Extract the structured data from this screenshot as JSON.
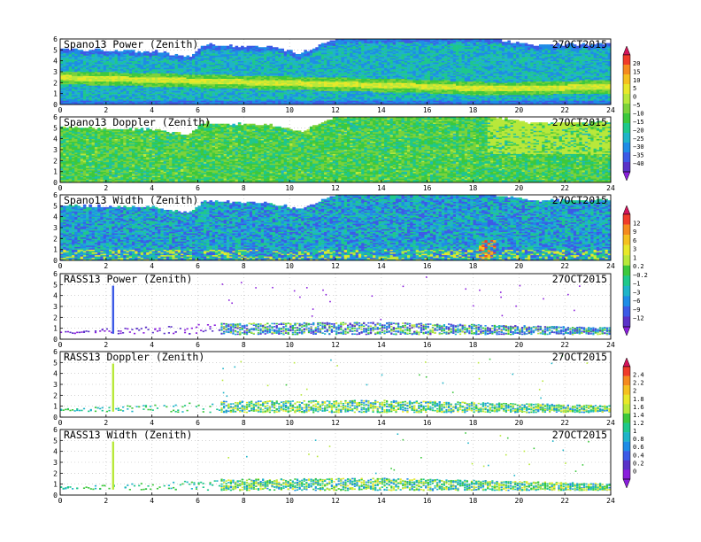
{
  "figure": {
    "colors": {
      "background": "#ffffff",
      "axis": "#000000",
      "grid": "#b8b8b8"
    },
    "colorbars": [
      {
        "id": "cb-power-doppler",
        "applies_to": [
          "Spano13 Power (Zenith)",
          "Spano13 Doppler (Zenith)"
        ],
        "labels": [
          "20",
          "15",
          "10",
          "5",
          "0",
          "−5",
          "−10",
          "−15",
          "−20",
          "−25",
          "−30",
          "−35",
          "−40"
        ],
        "colors": [
          "#d4145a",
          "#f03c2a",
          "#f58a1f",
          "#f5c01f",
          "#e8e82a",
          "#b8e83a",
          "#7ad23a",
          "#3cc83c",
          "#1ec88a",
          "#1eb4c8",
          "#1e8ce6",
          "#3c5ae6",
          "#5a32c8",
          "#8a1edc"
        ]
      },
      {
        "id": "cb-width",
        "applies_to": [
          "Spano13 Width (Zenith)",
          "RASS13 Power (Zenith)"
        ],
        "labels": [
          "12",
          "9",
          "6",
          "3",
          "1",
          "0.2",
          "−0.2",
          "−1",
          "−3",
          "−6",
          "−9",
          "−12"
        ],
        "colors": [
          "#d4145a",
          "#f03c2a",
          "#f58a1f",
          "#f5c01f",
          "#e8e82a",
          "#b8e83a",
          "#3cc83c",
          "#1ec88a",
          "#1eb4c8",
          "#1e8ce6",
          "#3c5ae6",
          "#5a32c8",
          "#8a1edc"
        ]
      },
      {
        "id": "cb-rass",
        "applies_to": [
          "RASS13 Doppler (Zenith)",
          "RASS13 Width (Zenith)"
        ],
        "labels": [
          "2.4",
          "2.2",
          "2",
          "1.8",
          "1.6",
          "1.4",
          "1.2",
          "1",
          "0.8",
          "0.6",
          "0.4",
          "0.2",
          "0"
        ],
        "colors": [
          "#d4145a",
          "#f03c2a",
          "#f58a1f",
          "#f5c01f",
          "#e8e82a",
          "#b8e83a",
          "#3cc83c",
          "#1ec88a",
          "#1eb4c8",
          "#1e8ce6",
          "#3c5ae6",
          "#5a32c8",
          "#8a1edc",
          "#8a1edc"
        ]
      }
    ]
  },
  "chart_data": [
    {
      "type": "heatmap",
      "title": "Spano13 Power (Zenith)",
      "date": "27OCT2015",
      "xlim": [
        0,
        24
      ],
      "ylim": [
        0,
        6
      ],
      "x_ticks": [
        "0",
        "2",
        "4",
        "6",
        "8",
        "10",
        "12",
        "14",
        "16",
        "18",
        "20",
        "22",
        "24"
      ],
      "y_ticks": [
        "0",
        "1",
        "2",
        "3",
        "4",
        "5",
        "6"
      ],
      "colorbar": "cb-power-doppler",
      "top_height": [
        [
          0,
          5.0
        ],
        [
          2,
          4.9
        ],
        [
          4,
          4.8
        ],
        [
          5.6,
          4.3
        ],
        [
          6.2,
          5.4
        ],
        [
          9.2,
          5.2
        ],
        [
          10.4,
          4.6
        ],
        [
          11.0,
          5.1
        ],
        [
          12.0,
          6.0
        ],
        [
          16.5,
          6.0
        ],
        [
          18.2,
          6.0
        ],
        [
          18.7,
          6.0
        ],
        [
          20.5,
          5.4
        ],
        [
          24,
          5.5
        ]
      ],
      "features": [
        {
          "name": "bright layer",
          "points": [
            [
              0,
              2.4
            ],
            [
              4,
              2.2
            ],
            [
              8,
              2.0
            ],
            [
              12,
              1.8
            ],
            [
              16,
              1.6
            ],
            [
              18.5,
              1.4
            ],
            [
              20,
              1.4
            ],
            [
              24,
              1.6
            ]
          ],
          "value": 8
        },
        {
          "name": "surface",
          "points": [
            [
              0,
              0.3
            ],
            [
              24,
              0.3
            ]
          ],
          "value": -30
        }
      ]
    },
    {
      "type": "heatmap",
      "title": "Spano13 Doppler (Zenith)",
      "date": "27OCT2015",
      "xlim": [
        0,
        24
      ],
      "ylim": [
        0,
        6
      ],
      "x_ticks": [
        "0",
        "2",
        "4",
        "6",
        "8",
        "10",
        "12",
        "14",
        "16",
        "18",
        "20",
        "22",
        "24"
      ],
      "y_ticks": [
        "0",
        "1",
        "2",
        "3",
        "4",
        "5",
        "6"
      ],
      "colorbar": "cb-power-doppler",
      "top_height": [
        [
          0,
          5.0
        ],
        [
          2,
          4.9
        ],
        [
          4,
          4.8
        ],
        [
          5.6,
          4.3
        ],
        [
          6.2,
          5.4
        ],
        [
          9.2,
          5.2
        ],
        [
          10.4,
          4.6
        ],
        [
          11.0,
          5.1
        ],
        [
          12.0,
          6.0
        ],
        [
          16.5,
          6.0
        ],
        [
          18.2,
          6.0
        ],
        [
          18.7,
          6.0
        ],
        [
          20.5,
          5.4
        ],
        [
          24,
          5.5
        ]
      ],
      "features": []
    },
    {
      "type": "heatmap",
      "title": "Spano13 Width (Zenith)",
      "date": "27OCT2015",
      "xlim": [
        0,
        24
      ],
      "ylim": [
        0,
        6
      ],
      "x_ticks": [
        "0",
        "2",
        "4",
        "6",
        "8",
        "10",
        "12",
        "14",
        "16",
        "18",
        "20",
        "22",
        "24"
      ],
      "y_ticks": [
        "0",
        "1",
        "2",
        "3",
        "4",
        "5",
        "6"
      ],
      "colorbar": "cb-width",
      "top_height": [
        [
          0,
          5.0
        ],
        [
          2,
          4.9
        ],
        [
          4,
          4.8
        ],
        [
          5.6,
          4.3
        ],
        [
          6.2,
          5.4
        ],
        [
          9.2,
          5.2
        ],
        [
          10.4,
          4.6
        ],
        [
          11.0,
          5.1
        ],
        [
          12.0,
          6.0
        ],
        [
          16.5,
          6.0
        ],
        [
          18.2,
          6.0
        ],
        [
          18.7,
          6.0
        ],
        [
          20.5,
          5.4
        ],
        [
          24,
          5.5
        ]
      ],
      "features": [
        {
          "name": "high width burst",
          "points": [
            [
              18.3,
              0.5
            ],
            [
              18.8,
              1.8
            ]
          ],
          "value": 9
        }
      ]
    },
    {
      "type": "scatter",
      "title": "RASS13 Power (Zenith)",
      "date": "27OCT2015",
      "xlim": [
        0,
        24
      ],
      "ylim": [
        0,
        6
      ],
      "x_ticks": [
        "0",
        "2",
        "4",
        "6",
        "8",
        "10",
        "12",
        "14",
        "16",
        "18",
        "20",
        "22",
        "24"
      ],
      "y_ticks": [
        "0",
        "1",
        "2",
        "3",
        "4",
        "5",
        "6"
      ],
      "colorbar": "cb-width",
      "spike": {
        "x": 2.3,
        "y_top": 4.9
      },
      "band": [
        [
          0,
          0.6,
          0.8
        ],
        [
          7.0,
          0.5,
          1.5
        ],
        [
          14,
          0.5,
          1.6
        ],
        [
          18,
          0.5,
          1.4
        ],
        [
          24,
          0.5,
          1.1
        ]
      ]
    },
    {
      "type": "scatter",
      "title": "RASS13 Doppler (Zenith)",
      "date": "27OCT2015",
      "xlim": [
        0,
        24
      ],
      "ylim": [
        0,
        6
      ],
      "x_ticks": [
        "0",
        "2",
        "4",
        "6",
        "8",
        "10",
        "12",
        "14",
        "16",
        "18",
        "20",
        "22",
        "24"
      ],
      "y_ticks": [
        "0",
        "1",
        "2",
        "3",
        "4",
        "5",
        "6"
      ],
      "colorbar": "cb-rass",
      "spike": {
        "x": 2.3,
        "y_top": 4.9
      },
      "band": [
        [
          0,
          0.6,
          0.8
        ],
        [
          7.0,
          0.5,
          1.5
        ],
        [
          14,
          0.5,
          1.6
        ],
        [
          18,
          0.5,
          1.4
        ],
        [
          24,
          0.5,
          1.1
        ]
      ]
    },
    {
      "type": "scatter",
      "title": "RASS13 Width (Zenith)",
      "date": "27OCT2015",
      "xlim": [
        0,
        24
      ],
      "ylim": [
        0,
        6
      ],
      "x_ticks": [
        "0",
        "2",
        "4",
        "6",
        "8",
        "10",
        "12",
        "14",
        "16",
        "18",
        "20",
        "22",
        "24"
      ],
      "y_ticks": [
        "0",
        "1",
        "2",
        "3",
        "4",
        "5",
        "6"
      ],
      "colorbar": "cb-rass",
      "spike": {
        "x": 2.3,
        "y_top": 4.9
      },
      "band": [
        [
          0,
          0.6,
          0.8
        ],
        [
          7.0,
          0.5,
          1.5
        ],
        [
          14,
          0.5,
          1.6
        ],
        [
          18,
          0.5,
          1.4
        ],
        [
          24,
          0.5,
          1.1
        ]
      ]
    }
  ]
}
